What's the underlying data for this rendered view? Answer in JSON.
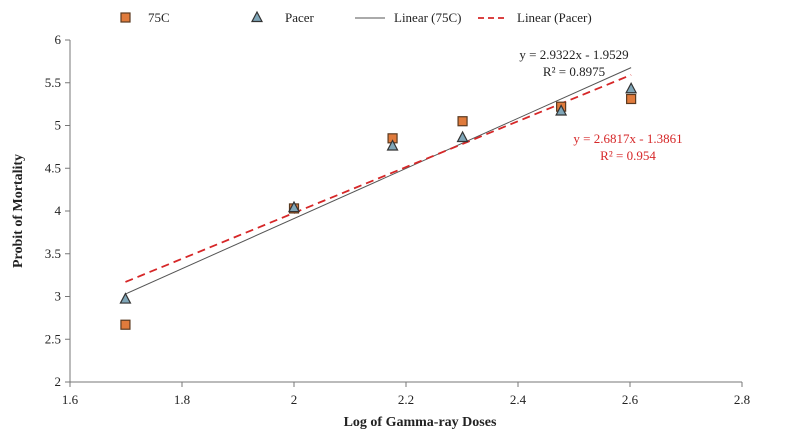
{
  "chart_data": {
    "type": "scatter",
    "xlabel": "Log of Gamma-ray Doses",
    "ylabel": "Probit of Mortality",
    "xlim": [
      1.6,
      2.8
    ],
    "ylim": [
      2,
      6
    ],
    "xticks": [
      "1.6",
      "1.8",
      "2",
      "2.2",
      "2.4",
      "2.6",
      "2.8"
    ],
    "yticks": [
      "2",
      "2.5",
      "3",
      "3.5",
      "4",
      "4.5",
      "5",
      "5.5",
      "6"
    ],
    "legend_position": "top",
    "series": [
      {
        "name": "75C",
        "marker": "square",
        "fill": "#e07b3c",
        "stroke": "#5a3a20",
        "x": [
          1.699,
          2.0,
          2.176,
          2.301,
          2.477,
          2.602
        ],
        "y": [
          2.67,
          4.03,
          4.85,
          5.05,
          5.22,
          5.31
        ]
      },
      {
        "name": "Pacer",
        "marker": "triangle",
        "fill": "#7fa6b8",
        "stroke": "#333333",
        "x": [
          1.699,
          2.0,
          2.176,
          2.301,
          2.477,
          2.602
        ],
        "y": [
          2.97,
          4.04,
          4.76,
          4.86,
          5.17,
          5.43
        ]
      }
    ],
    "trendlines": [
      {
        "name": "Linear (75C)",
        "slope": 2.9322,
        "intercept": -1.9529,
        "x_range": [
          1.699,
          2.602
        ],
        "color": "#555555",
        "dash": "solid",
        "equation": "y = 2.9322x - 1.9529",
        "r2": "R² = 0.8975",
        "text_color": "#222222"
      },
      {
        "name": "Linear (Pacer)",
        "slope": 2.6817,
        "intercept": -1.3861,
        "x_range": [
          1.699,
          2.602
        ],
        "color": "#d62728",
        "dash": "dashed",
        "equation": "y = 2.6817x - 1.3861",
        "r2": "R² = 0.954",
        "text_color": "#d62728"
      }
    ]
  }
}
